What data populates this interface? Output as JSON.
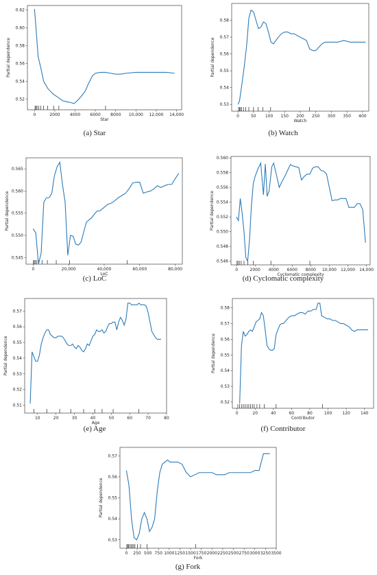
{
  "chart_data": [
    {
      "id": "star",
      "type": "line",
      "caption": "(a) Star",
      "xlabel": "Star",
      "ylabel": "Partial dependence",
      "xlim": [
        -700,
        14500
      ],
      "ylim": [
        0.508,
        0.625
      ],
      "xticks": [
        0,
        2000,
        4000,
        6000,
        8000,
        10000,
        12000,
        14000
      ],
      "xtick_labels": [
        "0",
        "2000",
        "4000",
        "6000",
        "8000",
        "10,000",
        "12,000",
        "14,000"
      ],
      "yticks": [
        0.52,
        0.54,
        0.56,
        0.58,
        0.6,
        0.62
      ],
      "ytick_labels": [
        "0.52",
        "0.54",
        "0.56",
        "0.58",
        "0.60",
        "0.62"
      ],
      "x": [
        0,
        150,
        350,
        600,
        900,
        1300,
        1800,
        2300,
        2800,
        3200,
        3600,
        3900,
        4200,
        4600,
        5000,
        5300,
        5700,
        6000,
        6500,
        7000,
        7500,
        8000,
        8500,
        9000,
        10000,
        11000,
        12000,
        13000,
        13800
      ],
      "values": [
        0.621,
        0.599,
        0.568,
        0.556,
        0.54,
        0.532,
        0.526,
        0.522,
        0.518,
        0.517,
        0.516,
        0.515,
        0.518,
        0.523,
        0.529,
        0.537,
        0.546,
        0.549,
        0.55,
        0.55,
        0.549,
        0.548,
        0.548,
        0.549,
        0.55,
        0.55,
        0.55,
        0.55,
        0.549
      ],
      "rug": [
        50,
        150,
        250,
        400,
        600,
        900,
        1300,
        1900,
        2400,
        7000
      ]
    },
    {
      "id": "watch",
      "type": "line",
      "caption": "(b) Watch",
      "xlabel": "Watch",
      "ylabel": "Partial dependence",
      "xlim": [
        -20,
        420
      ],
      "ylim": [
        0.526,
        0.59
      ],
      "xticks": [
        0,
        50,
        100,
        150,
        200,
        250,
        300,
        350,
        400
      ],
      "xtick_labels": [
        "0",
        "50",
        "100",
        "150",
        "200",
        "250",
        "300",
        "350",
        "400"
      ],
      "yticks": [
        0.53,
        0.54,
        0.55,
        0.56,
        0.57,
        0.58
      ],
      "ytick_labels": [
        "0.53",
        "0.54",
        "0.55",
        "0.56",
        "0.57",
        "0.58"
      ],
      "x": [
        0,
        5,
        12,
        20,
        28,
        35,
        42,
        50,
        58,
        66,
        74,
        82,
        90,
        98,
        106,
        114,
        122,
        130,
        140,
        150,
        160,
        170,
        180,
        190,
        200,
        210,
        220,
        230,
        240,
        250,
        260,
        270,
        280,
        300,
        320,
        340,
        360,
        380,
        400,
        410
      ],
      "values": [
        0.53,
        0.532,
        0.541,
        0.552,
        0.565,
        0.581,
        0.586,
        0.585,
        0.58,
        0.575,
        0.576,
        0.579,
        0.578,
        0.573,
        0.567,
        0.566,
        0.568,
        0.57,
        0.572,
        0.573,
        0.573,
        0.572,
        0.572,
        0.571,
        0.57,
        0.569,
        0.568,
        0.563,
        0.562,
        0.562,
        0.564,
        0.566,
        0.567,
        0.567,
        0.567,
        0.568,
        0.567,
        0.567,
        0.567,
        0.567
      ],
      "rug": [
        2,
        5,
        8,
        12,
        18,
        25,
        35,
        50,
        65,
        80,
        105,
        230
      ]
    },
    {
      "id": "loc",
      "type": "line",
      "caption": "(c) LoC",
      "xlabel": "LoC",
      "ylabel": "Partial dependence",
      "xlim": [
        -4000,
        84000
      ],
      "ylim": [
        0.5435,
        0.5675
      ],
      "xticks": [
        0,
        20000,
        40000,
        60000,
        80000
      ],
      "xtick_labels": [
        "0",
        "20,000",
        "40,000",
        "60,000",
        "80,000"
      ],
      "yticks": [
        0.545,
        0.55,
        0.555,
        0.56,
        0.565
      ],
      "ytick_labels": [
        "0.545",
        "0.550",
        "0.555",
        "0.560",
        "0.565"
      ],
      "x": [
        0,
        1500,
        3000,
        4500,
        6000,
        7500,
        9000,
        10500,
        12000,
        13500,
        15000,
        16500,
        18000,
        19500,
        21000,
        22500,
        24000,
        25500,
        27000,
        28500,
        30000,
        31500,
        33000,
        34500,
        36000,
        37500,
        39000,
        40500,
        42000,
        43500,
        45000,
        46500,
        48000,
        50000,
        52000,
        54000,
        56000,
        58000,
        60000,
        62000,
        64000,
        66000,
        68000,
        70000,
        72000,
        74000,
        76000,
        78000,
        80000,
        82000
      ],
      "values": [
        0.5515,
        0.5505,
        0.5435,
        0.546,
        0.5575,
        0.5585,
        0.5585,
        0.5595,
        0.5635,
        0.5655,
        0.5665,
        0.5615,
        0.5575,
        0.5455,
        0.55,
        0.5498,
        0.548,
        0.5478,
        0.5485,
        0.5508,
        0.553,
        0.5535,
        0.554,
        0.5548,
        0.5555,
        0.5555,
        0.556,
        0.5565,
        0.557,
        0.5572,
        0.5575,
        0.558,
        0.5585,
        0.559,
        0.5595,
        0.5605,
        0.5618,
        0.562,
        0.562,
        0.5595,
        0.5598,
        0.56,
        0.5605,
        0.5612,
        0.5608,
        0.5612,
        0.5615,
        0.5615,
        0.5628,
        0.564
      ],
      "rug": [
        200,
        600,
        1200,
        2000,
        3000,
        5000,
        8000,
        13000,
        20500,
        53000
      ]
    },
    {
      "id": "cyclomatic",
      "type": "line",
      "caption": "(d) Cyclomatic complexity",
      "xlabel": "Cyclomatic complexity",
      "ylabel": "Partial dependence",
      "xlim": [
        -600,
        14400
      ],
      "ylim": [
        0.5455,
        0.5602
      ],
      "xticks": [
        0,
        2000,
        4000,
        6000,
        8000,
        10000,
        12000,
        14000
      ],
      "xtick_labels": [
        "0",
        "2000",
        "4000",
        "6000",
        "8000",
        "10,000",
        "12,000",
        "14,000"
      ],
      "yticks": [
        0.546,
        0.548,
        0.55,
        0.552,
        0.554,
        0.556,
        0.558,
        0.56
      ],
      "ytick_labels": [
        "0.546",
        "0.548",
        "0.550",
        "0.552",
        "0.554",
        "0.556",
        "0.558",
        "0.560"
      ],
      "x": [
        0,
        200,
        400,
        600,
        800,
        1000,
        1200,
        1400,
        1600,
        1800,
        2000,
        2300,
        2600,
        2900,
        3100,
        3300,
        3500,
        3800,
        4000,
        4300,
        4600,
        4900,
        5200,
        5500,
        5800,
        6100,
        6400,
        6700,
        7000,
        7300,
        7600,
        7900,
        8200,
        8500,
        8800,
        9100,
        9400,
        9700,
        10000,
        10300,
        10600,
        10900,
        11200,
        11500,
        11800,
        12100,
        12400,
        12700,
        13000,
        13300,
        13600,
        13900
      ],
      "values": [
        0.552,
        0.5515,
        0.5545,
        0.5525,
        0.55,
        0.5465,
        0.546,
        0.549,
        0.5535,
        0.5565,
        0.5575,
        0.5585,
        0.5593,
        0.555,
        0.5592,
        0.5548,
        0.5555,
        0.5588,
        0.5593,
        0.5577,
        0.556,
        0.5568,
        0.5575,
        0.5583,
        0.5591,
        0.5589,
        0.5588,
        0.5587,
        0.557,
        0.5575,
        0.5578,
        0.5578,
        0.5586,
        0.5588,
        0.5588,
        0.5583,
        0.5582,
        0.5578,
        0.556,
        0.5542,
        0.5543,
        0.5543,
        0.5545,
        0.5545,
        0.5545,
        0.5533,
        0.5533,
        0.5533,
        0.5538,
        0.5538,
        0.553,
        0.5485
      ],
      "rug": [
        50,
        150,
        300,
        500,
        800,
        1200,
        1800,
        3700,
        7900
      ]
    },
    {
      "id": "age",
      "type": "line",
      "caption": "(e) Age",
      "xlabel": "Age",
      "ylabel": "Partial dependence",
      "xlim": [
        3,
        80
      ],
      "ylim": [
        0.505,
        0.578
      ],
      "xticks": [
        10,
        20,
        30,
        40,
        50,
        60,
        70,
        80
      ],
      "xtick_labels": [
        "10",
        "20",
        "30",
        "40",
        "50",
        "60",
        "70",
        "80"
      ],
      "yticks": [
        0.51,
        0.52,
        0.53,
        0.54,
        0.55,
        0.56,
        0.57
      ],
      "ytick_labels": [
        "0.51",
        "0.52",
        "0.53",
        "0.54",
        "0.55",
        "0.56",
        "0.57"
      ],
      "x": [
        6,
        7,
        8,
        9,
        10,
        11,
        12,
        13,
        14,
        15,
        16,
        17,
        18,
        19,
        20,
        21,
        22,
        23,
        24,
        25,
        26,
        27,
        28,
        29,
        30,
        31,
        32,
        33,
        34,
        35,
        36,
        37,
        38,
        39,
        40,
        41,
        42,
        43,
        44,
        45,
        46,
        47,
        48,
        49,
        50,
        51,
        52,
        53,
        54,
        55,
        56,
        57,
        58,
        59,
        60,
        61,
        62,
        63,
        64,
        65,
        66,
        67,
        68,
        69,
        70,
        71,
        72,
        73,
        74,
        75,
        76,
        77
      ],
      "values": [
        0.511,
        0.544,
        0.541,
        0.538,
        0.538,
        0.542,
        0.549,
        0.553,
        0.556,
        0.558,
        0.558,
        0.555,
        0.554,
        0.553,
        0.553,
        0.554,
        0.554,
        0.554,
        0.553,
        0.551,
        0.549,
        0.548,
        0.548,
        0.549,
        0.547,
        0.546,
        0.548,
        0.547,
        0.545,
        0.544,
        0.546,
        0.549,
        0.548,
        0.551,
        0.554,
        0.555,
        0.558,
        0.557,
        0.557,
        0.558,
        0.556,
        0.557,
        0.56,
        0.562,
        0.562,
        0.563,
        0.563,
        0.558,
        0.563,
        0.566,
        0.564,
        0.561,
        0.565,
        0.575,
        0.575,
        0.574,
        0.574,
        0.574,
        0.574,
        0.575,
        0.574,
        0.574,
        0.574,
        0.573,
        0.569,
        0.563,
        0.557,
        0.555,
        0.553,
        0.552,
        0.552,
        0.552
      ],
      "rug": [
        8,
        15,
        22,
        28,
        35,
        41,
        45,
        51,
        65
      ]
    },
    {
      "id": "contributor",
      "type": "line",
      "caption": "(f) Contributor",
      "xlabel": "Contributor",
      "ylabel": "Partial dependence",
      "xlim": [
        -5,
        150
      ],
      "ylim": [
        0.516,
        0.586
      ],
      "xticks": [
        0,
        20,
        40,
        60,
        80,
        100,
        120,
        140
      ],
      "xtick_labels": [
        "0",
        "20",
        "40",
        "60",
        "80",
        "100",
        "120",
        "140"
      ],
      "yticks": [
        0.52,
        0.53,
        0.54,
        0.55,
        0.56,
        0.57,
        0.58
      ],
      "ytick_labels": [
        "0.52",
        "0.53",
        "0.54",
        "0.55",
        "0.56",
        "0.57",
        "0.58"
      ],
      "x": [
        3,
        5,
        7,
        9,
        11,
        13,
        15,
        17,
        19,
        21,
        23,
        25,
        27,
        29,
        31,
        33,
        35,
        37,
        39,
        41,
        43,
        45,
        47,
        49,
        51,
        54,
        57,
        60,
        63,
        66,
        69,
        72,
        75,
        78,
        81,
        84,
        87,
        89,
        91,
        93,
        96,
        99,
        102,
        105,
        108,
        111,
        114,
        117,
        120,
        123,
        126,
        129,
        132,
        135,
        138,
        141,
        144
      ],
      "values": [
        0.519,
        0.556,
        0.565,
        0.562,
        0.563,
        0.565,
        0.566,
        0.565,
        0.568,
        0.571,
        0.572,
        0.573,
        0.577,
        0.575,
        0.566,
        0.556,
        0.554,
        0.553,
        0.553,
        0.554,
        0.563,
        0.566,
        0.569,
        0.57,
        0.57,
        0.572,
        0.574,
        0.575,
        0.575,
        0.576,
        0.577,
        0.577,
        0.576,
        0.578,
        0.578,
        0.579,
        0.579,
        0.583,
        0.583,
        0.575,
        0.574,
        0.573,
        0.573,
        0.572,
        0.572,
        0.571,
        0.57,
        0.57,
        0.569,
        0.568,
        0.566,
        0.565,
        0.566,
        0.566,
        0.566,
        0.566,
        0.566
      ],
      "rug": [
        1,
        3,
        5,
        7,
        9,
        11,
        13,
        15,
        17,
        19,
        22,
        25,
        30,
        43,
        94
      ]
    },
    {
      "id": "fork",
      "type": "line",
      "caption": "(g) Fork",
      "xlabel": "Fork",
      "ylabel": "Partial dependence",
      "xlim": [
        -150,
        3500
      ],
      "ylim": [
        0.526,
        0.574
      ],
      "xticks": [
        0,
        250,
        500,
        750,
        1000,
        1250,
        1500,
        1750,
        2000,
        2250,
        2500,
        2750,
        3000,
        3250,
        3500
      ],
      "xtick_labels": [
        "0",
        "250",
        "500",
        "750",
        "1000",
        "1250",
        "1500",
        "1750",
        "2000",
        "2250",
        "2500",
        "2750",
        "3000",
        "3250",
        "3500"
      ],
      "yticks": [
        0.53,
        0.54,
        0.55,
        0.56,
        0.57
      ],
      "ytick_labels": [
        "0.53",
        "0.54",
        "0.55",
        "0.56",
        "0.57"
      ],
      "x": [
        0,
        60,
        120,
        180,
        240,
        300,
        360,
        420,
        480,
        540,
        600,
        660,
        720,
        780,
        840,
        900,
        960,
        1020,
        1100,
        1200,
        1300,
        1400,
        1500,
        1600,
        1700,
        1800,
        1900,
        2000,
        2100,
        2200,
        2300,
        2400,
        2500,
        2600,
        2700,
        2800,
        2900,
        3000,
        3100,
        3150,
        3200,
        3250,
        3300,
        3350
      ],
      "values": [
        0.563,
        0.556,
        0.54,
        0.531,
        0.53,
        0.533,
        0.54,
        0.543,
        0.54,
        0.534,
        0.536,
        0.54,
        0.553,
        0.562,
        0.566,
        0.567,
        0.568,
        0.567,
        0.567,
        0.567,
        0.566,
        0.562,
        0.56,
        0.561,
        0.562,
        0.562,
        0.562,
        0.562,
        0.561,
        0.561,
        0.561,
        0.562,
        0.562,
        0.562,
        0.562,
        0.562,
        0.562,
        0.563,
        0.563,
        0.567,
        0.571,
        0.571,
        0.571,
        0.571
      ],
      "rug": [
        10,
        30,
        50,
        80,
        110,
        140,
        170,
        200,
        260,
        330,
        480,
        1620
      ]
    }
  ]
}
